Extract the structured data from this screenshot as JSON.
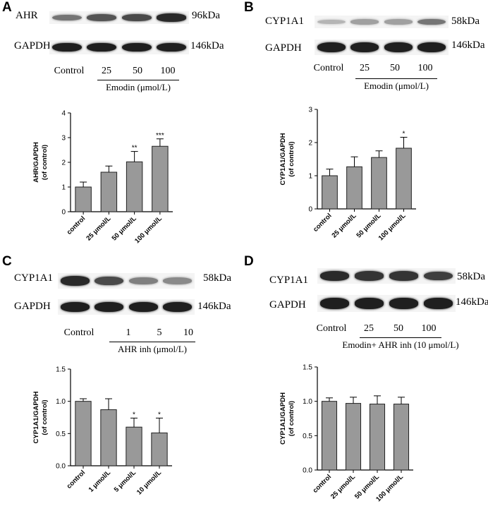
{
  "panels": [
    {
      "letter": "A",
      "blots": [
        {
          "label": "AHR",
          "kda": "96kDa",
          "intensities": [
            0.55,
            0.7,
            0.75,
            0.9
          ]
        },
        {
          "label": "GAPDH",
          "kda": "146kDa",
          "intensities": [
            0.95,
            0.95,
            0.95,
            0.95
          ]
        }
      ],
      "lanes": [
        "Control",
        "25",
        "50",
        "100"
      ],
      "treatment": "Emodin (μmol/L)"
    },
    {
      "letter": "B",
      "blots": [
        {
          "label": "CYP1A1",
          "kda": "58kDa",
          "intensities": [
            0.25,
            0.35,
            0.35,
            0.55
          ]
        },
        {
          "label": "GAPDH",
          "kda": "146kDa",
          "intensities": [
            0.95,
            0.95,
            0.95,
            0.95
          ]
        }
      ],
      "lanes": [
        "Control",
        "25",
        "50",
        "100"
      ],
      "treatment": "Emodin (μmol/L)"
    },
    {
      "letter": "C",
      "blots": [
        {
          "label": "CYP1A1",
          "kda": "58kDa",
          "intensities": [
            0.9,
            0.75,
            0.5,
            0.45
          ]
        },
        {
          "label": "GAPDH",
          "kda": "146kDa",
          "intensities": [
            0.95,
            0.95,
            0.95,
            0.95
          ]
        }
      ],
      "lanes": [
        "Control",
        "1",
        "5",
        "10"
      ],
      "treatment": "AHR inh (μmol/L)"
    },
    {
      "letter": "D",
      "blots": [
        {
          "label": "CYP1A1",
          "kda": "58kDa",
          "intensities": [
            0.9,
            0.85,
            0.85,
            0.8
          ]
        },
        {
          "label": "GAPDH",
          "kda": "146kDa",
          "intensities": [
            0.95,
            0.95,
            0.95,
            0.95
          ]
        }
      ],
      "lanes": [
        "Control",
        "25",
        "50",
        "100"
      ],
      "treatment": "Emodin+ AHR inh (10 μmol/L)"
    }
  ],
  "chart_data": [
    {
      "type": "bar",
      "panel": "A",
      "categories": [
        "control",
        "25 μmol/L",
        "50 μmol/L",
        "100 μmol/L"
      ],
      "values": [
        1.0,
        1.6,
        2.02,
        2.65
      ],
      "errors": [
        0.2,
        0.25,
        0.42,
        0.3
      ],
      "annotations": [
        "",
        "",
        "**",
        "***"
      ],
      "ylabel": "AHR/GAPDH (of control)",
      "ylim": [
        0,
        4
      ],
      "yticks": [
        "0",
        "1",
        "2",
        "3",
        "4"
      ],
      "bar_color": "#999999"
    },
    {
      "type": "bar",
      "panel": "B",
      "categories": [
        "control",
        "25 μmol/L",
        "50 μmol/L",
        "100 μmol/L"
      ],
      "values": [
        1.0,
        1.27,
        1.55,
        1.83
      ],
      "errors": [
        0.2,
        0.3,
        0.2,
        0.33
      ],
      "annotations": [
        "",
        "",
        "",
        "*"
      ],
      "ylabel": "CYP1A1/GAPDH (of control)",
      "ylim": [
        0,
        3
      ],
      "yticks": [
        "0",
        "1",
        "2",
        "3"
      ],
      "bar_color": "#999999"
    },
    {
      "type": "bar",
      "panel": "C",
      "categories": [
        "control",
        "1 μmol/L",
        "5 μmol/L",
        "10 μmol/L"
      ],
      "values": [
        1.0,
        0.87,
        0.6,
        0.51
      ],
      "errors": [
        0.04,
        0.17,
        0.14,
        0.23
      ],
      "annotations": [
        "",
        "",
        "*",
        "*"
      ],
      "ylabel": "CYP1A1/GAPDH (of control)",
      "ylim": [
        0,
        1.5
      ],
      "yticks": [
        "0.0",
        "0.5",
        "1.0",
        "1.5"
      ],
      "bar_color": "#999999"
    },
    {
      "type": "bar",
      "panel": "D",
      "categories": [
        "control",
        "25 μmol/L",
        "50 μmol/L",
        "100 μmol/L"
      ],
      "values": [
        1.0,
        0.97,
        0.96,
        0.96
      ],
      "errors": [
        0.05,
        0.09,
        0.12,
        0.1
      ],
      "annotations": [
        "",
        "",
        "",
        ""
      ],
      "ylabel": "CYP1A1/GAPDH (of control)",
      "ylim": [
        0,
        1.5
      ],
      "yticks": [
        "0.0",
        "0.5",
        "1.0",
        "1.5"
      ],
      "bar_color": "#999999"
    }
  ]
}
